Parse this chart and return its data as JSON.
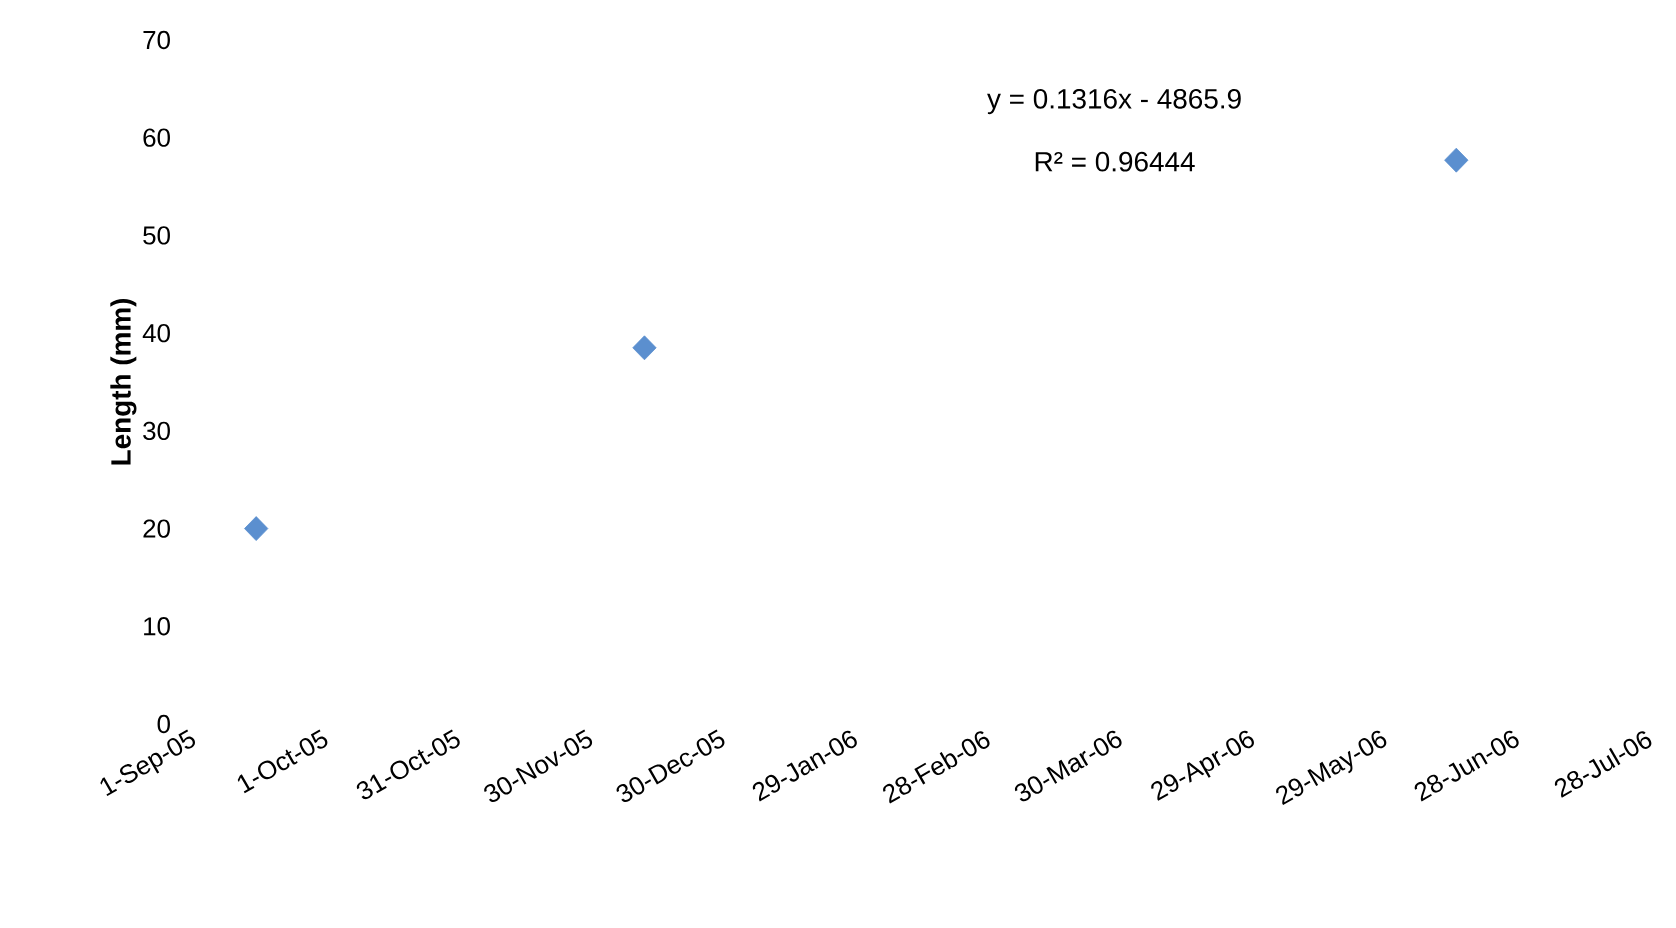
{
  "chart_data": {
    "type": "scatter",
    "ylabel": "Length (mm)",
    "x": [
      "2005-09-16",
      "2005-12-13",
      "2006-06-15"
    ],
    "series": [
      {
        "color": "#5b8fcf",
        "values": [
          20,
          38.5,
          57.7
        ]
      }
    ],
    "xlim": [
      "2005-09-01",
      "2006-07-28"
    ],
    "xticks": [
      {
        "value": "2005-09-01",
        "label": "1-Sep-05"
      },
      {
        "value": "2005-10-01",
        "label": "1-Oct-05"
      },
      {
        "value": "2005-10-31",
        "label": "31-Oct-05"
      },
      {
        "value": "2005-11-30",
        "label": "30-Nov-05"
      },
      {
        "value": "2005-12-30",
        "label": "30-Dec-05"
      },
      {
        "value": "2006-01-29",
        "label": "29-Jan-06"
      },
      {
        "value": "2006-02-28",
        "label": "28-Feb-06"
      },
      {
        "value": "2006-03-30",
        "label": "30-Mar-06"
      },
      {
        "value": "2006-04-29",
        "label": "29-Apr-06"
      },
      {
        "value": "2006-05-29",
        "label": "29-May-06"
      },
      {
        "value": "2006-06-28",
        "label": "28-Jun-06"
      },
      {
        "value": "2006-07-28",
        "label": "28-Jul-06"
      }
    ],
    "ylim": [
      0,
      70
    ],
    "yticks": [
      0,
      10,
      20,
      30,
      40,
      50,
      60,
      70
    ],
    "marker": "diamond",
    "annotations": [
      "y = 0.1316x - 4865.9",
      "R² = 0.96444"
    ]
  }
}
